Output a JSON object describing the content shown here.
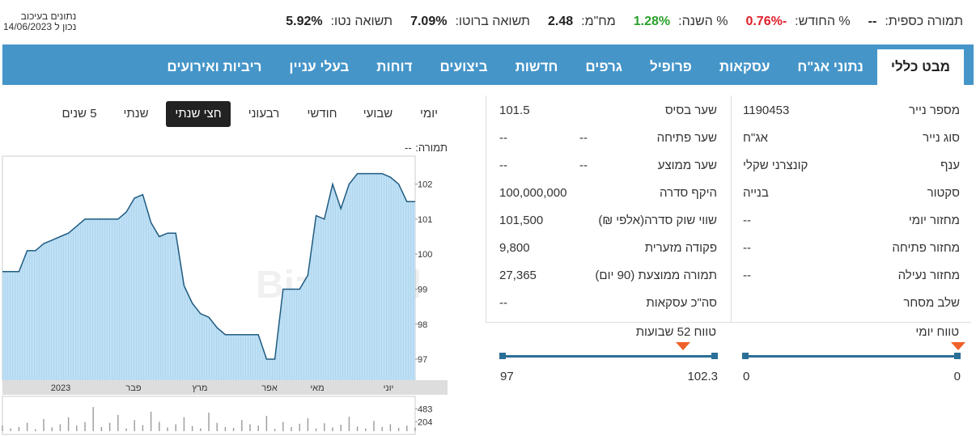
{
  "status": {
    "delay": "נתונים בעיכוב",
    "as_of": "נכון ל 14/06/2023"
  },
  "summary": [
    {
      "label": "תמורה כספית:",
      "value": "--",
      "color": "#222"
    },
    {
      "label": "% החודש:",
      "value": "-0.76%",
      "color": "#e0202a"
    },
    {
      "label": "% השנה:",
      "value": "1.28%",
      "color": "#2aa12a"
    },
    {
      "label": "מח\"מ:",
      "value": "2.48",
      "color": "#222"
    },
    {
      "label": "תשואה ברוטו:",
      "value": "7.09%",
      "color": "#222"
    },
    {
      "label": "תשואה נטו:",
      "value": "5.92%",
      "color": "#222"
    }
  ],
  "tabs": [
    "מבט כללי",
    "נתוני אג\"ח",
    "עסקאות",
    "פרופיל",
    "גרפים",
    "חדשות",
    "ביצועים",
    "דוחות",
    "בעלי עניין",
    "ריביות ואירועים"
  ],
  "active_tab": 0,
  "details_right": [
    [
      "מספר נייר",
      "1190453"
    ],
    [
      "סוג נייר",
      "אג\"ח"
    ],
    [
      "ענף",
      "קונצרני שקלי"
    ],
    [
      "סקטור",
      "בנייה"
    ],
    [
      "מחזור יומי",
      "--"
    ],
    [
      "מחזור פתיחה",
      "--"
    ],
    [
      "מחזור נעילה",
      "--"
    ],
    [
      "שלב מסחר"
    ]
  ],
  "details_mid": [
    [
      "שער בסיס",
      "101.5"
    ],
    [
      "שער פתיחה",
      "--",
      "--"
    ],
    [
      "שער ממוצע",
      "--",
      "--"
    ],
    [
      "היקף סדרה",
      "100,000,000"
    ],
    [
      "שווי שוק סדרה(אלפי ₪)",
      "101,500"
    ],
    [
      "פקודה מזערית",
      "9,800"
    ],
    [
      "תמורה ממוצעת (90 יום)",
      "27,365"
    ],
    [
      "סה\"כ עסקאות",
      "--"
    ]
  ],
  "ranges": [
    {
      "label": "טווח יומי",
      "min": 0,
      "max": 0
    },
    {
      "label": "טווח 52 שבועות",
      "min": 97,
      "max": 102.3
    }
  ],
  "periods": [
    "יומי",
    "שבועי",
    "חודשי",
    "רבעוני",
    "חצי שנתי",
    "שנתי",
    "5 שנים"
  ],
  "active_period": 4,
  "chart_header": {
    "label": "תמורה:",
    "value": "--"
  },
  "watermark": "Bizportal",
  "chart_data": [
    {
      "type": "line",
      "color": "#1f5b80",
      "x_labels": [
        "2023",
        "פבר",
        "מרץ",
        "אפר",
        "מאי",
        "יוני"
      ],
      "values": [
        99.5,
        99.5,
        99.5,
        100.1,
        100.1,
        100.3,
        100.4,
        100.5,
        100.6,
        100.8,
        101,
        101,
        101,
        101,
        101,
        101.2,
        101.6,
        101.7,
        100.9,
        100.5,
        100.6,
        100.6,
        99.1,
        98.6,
        98.3,
        98.2,
        97.9,
        97.7,
        97.7,
        97.7,
        97.7,
        97.7,
        97,
        97,
        99,
        99,
        99,
        99.4,
        101.1,
        101,
        102,
        101.3,
        102,
        102.3,
        102.3,
        102.3,
        102.3,
        102.2,
        102,
        101.5,
        101.5
      ],
      "ylim": [
        96.4,
        102.8
      ],
      "yticks": [
        97,
        98,
        99,
        100,
        101,
        102
      ]
    },
    {
      "type": "bar",
      "color": "#9a9a9a",
      "values": [
        120,
        60,
        90,
        180,
        40,
        260,
        80,
        150,
        300,
        120,
        200,
        520,
        90,
        180,
        350,
        60,
        240,
        130,
        420,
        200,
        80,
        150,
        300,
        110,
        60,
        400,
        180,
        90,
        70,
        240,
        150,
        120,
        330,
        50,
        200,
        90,
        160,
        280,
        60,
        170,
        80,
        140,
        310,
        100,
        60,
        220,
        90,
        150,
        70,
        120,
        80
      ],
      "ylim": [
        0,
        750
      ],
      "yticks": [
        204,
        483
      ]
    }
  ]
}
